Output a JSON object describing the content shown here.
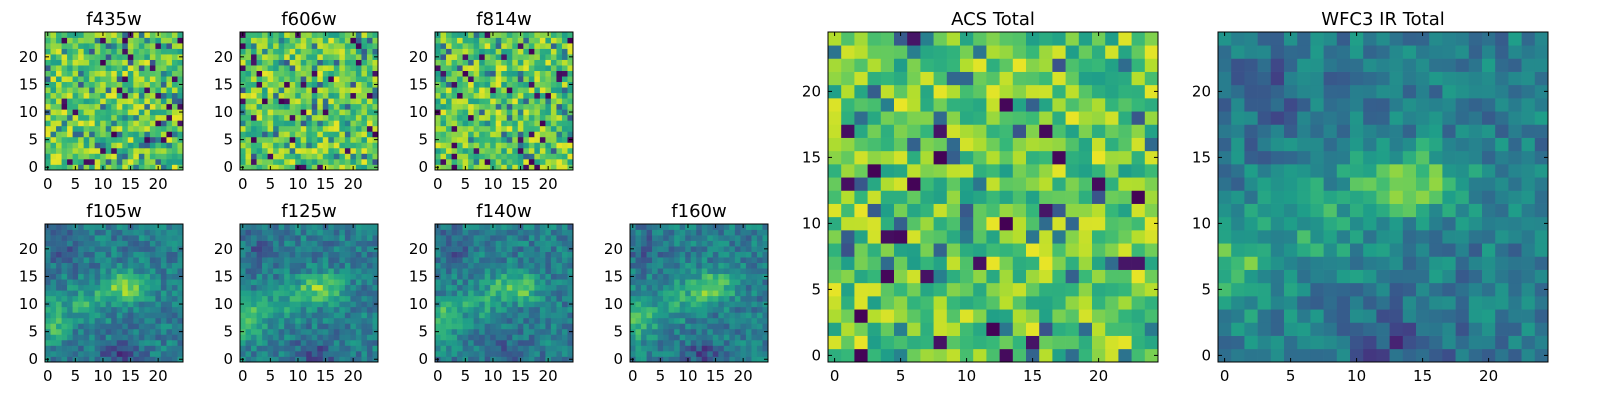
{
  "chart_data": [
    {
      "type": "heatmap",
      "title": "f435w",
      "colormap": "viridis",
      "pattern": "noise",
      "grid": [
        25,
        25
      ],
      "xlim": [
        -0.5,
        24.5
      ],
      "ylim": [
        -0.5,
        24.5
      ],
      "xticks": [
        "0",
        "5",
        "10",
        "15",
        "20"
      ],
      "yticks": [
        "0",
        "5",
        "10",
        "15",
        "20"
      ]
    },
    {
      "type": "heatmap",
      "title": "f606w",
      "colormap": "viridis",
      "pattern": "noise",
      "grid": [
        25,
        25
      ],
      "xlim": [
        -0.5,
        24.5
      ],
      "ylim": [
        -0.5,
        24.5
      ],
      "xticks": [
        "0",
        "5",
        "10",
        "15",
        "20"
      ],
      "yticks": [
        "0",
        "5",
        "10",
        "15",
        "20"
      ]
    },
    {
      "type": "heatmap",
      "title": "f814w",
      "colormap": "viridis",
      "pattern": "noise",
      "grid": [
        25,
        25
      ],
      "xlim": [
        -0.5,
        24.5
      ],
      "ylim": [
        -0.5,
        24.5
      ],
      "xticks": [
        "0",
        "5",
        "10",
        "15",
        "20"
      ],
      "yticks": [
        "0",
        "5",
        "10",
        "15",
        "20"
      ]
    },
    {
      "type": "heatmap",
      "title": "f105w",
      "colormap": "viridis",
      "pattern": "source",
      "grid": [
        25,
        25
      ],
      "xlim": [
        -0.5,
        24.5
      ],
      "ylim": [
        -0.5,
        24.5
      ],
      "xticks": [
        "0",
        "5",
        "10",
        "15",
        "20"
      ],
      "yticks": [
        "0",
        "5",
        "10",
        "15",
        "20"
      ]
    },
    {
      "type": "heatmap",
      "title": "f125w",
      "colormap": "viridis",
      "pattern": "source",
      "grid": [
        25,
        25
      ],
      "xlim": [
        -0.5,
        24.5
      ],
      "ylim": [
        -0.5,
        24.5
      ],
      "xticks": [
        "0",
        "5",
        "10",
        "15",
        "20"
      ],
      "yticks": [
        "0",
        "5",
        "10",
        "15",
        "20"
      ]
    },
    {
      "type": "heatmap",
      "title": "f140w",
      "colormap": "viridis",
      "pattern": "source",
      "grid": [
        25,
        25
      ],
      "xlim": [
        -0.5,
        24.5
      ],
      "ylim": [
        -0.5,
        24.5
      ],
      "xticks": [
        "0",
        "5",
        "10",
        "15",
        "20"
      ],
      "yticks": [
        "0",
        "5",
        "10",
        "15",
        "20"
      ]
    },
    {
      "type": "heatmap",
      "title": "f160w",
      "colormap": "viridis",
      "pattern": "source",
      "grid": [
        25,
        25
      ],
      "xlim": [
        -0.5,
        24.5
      ],
      "ylim": [
        -0.5,
        24.5
      ],
      "xticks": [
        "0",
        "5",
        "10",
        "15",
        "20"
      ],
      "yticks": [
        "0",
        "5",
        "10",
        "15",
        "20"
      ]
    },
    {
      "type": "heatmap",
      "title": "ACS Total",
      "colormap": "viridis",
      "pattern": "noise",
      "grid": [
        25,
        25
      ],
      "xlim": [
        -0.5,
        24.5
      ],
      "ylim": [
        -0.5,
        24.5
      ],
      "xticks": [
        "0",
        "5",
        "10",
        "15",
        "20"
      ],
      "yticks": [
        "0",
        "5",
        "10",
        "15",
        "20"
      ]
    },
    {
      "type": "heatmap",
      "title": "WFC3 IR Total",
      "colormap": "viridis",
      "pattern": "source",
      "grid": [
        25,
        25
      ],
      "xlim": [
        -0.5,
        24.5
      ],
      "ylim": [
        -0.5,
        24.5
      ],
      "xticks": [
        "0",
        "5",
        "10",
        "15",
        "20"
      ],
      "yticks": [
        "0",
        "5",
        "10",
        "15",
        "20"
      ]
    }
  ]
}
